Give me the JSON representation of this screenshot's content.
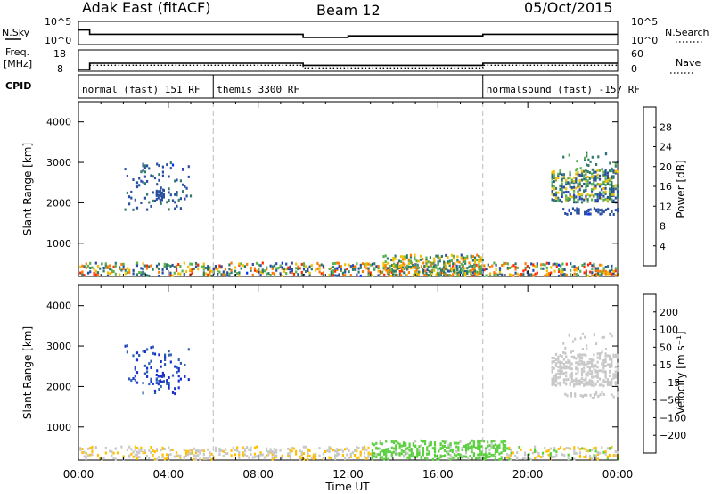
{
  "header": {
    "station": "Adak East (fitACF)",
    "beam": "Beam 12",
    "date": "05/Oct/2015"
  },
  "top_panels": {
    "nsky_label": "N.Sky",
    "nsearch_label": "N.Search",
    "freq_label_line1": "Freq.",
    "freq_label_line2": "[MHz]",
    "nave_label": "Nave",
    "cpid_label": "CPID",
    "noise_ticks_left": [
      "10^5",
      "10^0"
    ],
    "noise_ticks_right": [
      "10^5",
      "10^0"
    ],
    "freq_ticks": [
      "18",
      "8"
    ],
    "nave_ticks": [
      "60",
      "0"
    ],
    "noise_sky_steps": [
      {
        "t0": 0.0,
        "t1": 0.5,
        "v": 0.7
      },
      {
        "t0": 0.5,
        "t1": 7.5,
        "v": 0.3
      },
      {
        "t0": 7.5,
        "t1": 10.0,
        "v": 0.3
      },
      {
        "t0": 10.0,
        "t1": 12.0,
        "v": 0.0
      },
      {
        "t0": 12.0,
        "t1": 18.0,
        "v": 0.15
      },
      {
        "t0": 18.0,
        "t1": 24.0,
        "v": 0.3
      }
    ],
    "freq_steps": [
      {
        "t0": 0.0,
        "t1": 0.5,
        "v": 8
      },
      {
        "t0": 0.5,
        "t1": 10.0,
        "v": 11.5
      },
      {
        "t0": 10.0,
        "t1": 18.0,
        "v": 10.3
      },
      {
        "t0": 18.0,
        "t1": 24.0,
        "v": 11.5
      }
    ],
    "nave_steps": [
      {
        "t0": 0.5,
        "t1": 10.0,
        "v": 14
      },
      {
        "t0": 10.0,
        "t1": 18.0,
        "v": 5
      },
      {
        "t0": 18.0,
        "t1": 24.0,
        "v": 14
      }
    ],
    "cpid_segments": [
      {
        "label": "normal (fast) 151 RF",
        "start": 0,
        "end": 6
      },
      {
        "label": "themis 3300 RF",
        "start": 6,
        "end": 18
      },
      {
        "label": "normalsound (fast) -157 RF",
        "start": 18,
        "end": 24
      }
    ]
  },
  "x_axis": {
    "label": "Time UT",
    "ticks": [
      "00:00",
      "04:00",
      "08:00",
      "12:00",
      "16:00",
      "20:00",
      "00:00"
    ]
  },
  "colors": {
    "power_scale": [
      "#0a2bff",
      "#2a4fa0",
      "#2f7a6a",
      "#59b04e",
      "#f0c000",
      "#ff7a00",
      "#ff2a00"
    ],
    "velocity_scale": [
      "#1a2fd0",
      "#2c5fb0",
      "#2f8f60",
      "#5cd040",
      "#c8c8c8",
      "#ffc000",
      "#ff8000",
      "#ff4000",
      "#e00000"
    ]
  },
  "chart_data": [
    {
      "type": "heatmap",
      "ylabel": "Slant Range [km]",
      "xlabel": "",
      "y_ticks": [
        "1000",
        "2000",
        "3000",
        "4000"
      ],
      "ylim": [
        180,
        4500
      ],
      "xlim": [
        0,
        24
      ],
      "colorbar_label": "Power [dB]",
      "colorbar_ticks": [
        "4",
        "8",
        "12",
        "16",
        "20",
        "24",
        "28"
      ],
      "colorbar_range": [
        0,
        30
      ],
      "regions": [
        {
          "t0": 0.0,
          "t1": 24.0,
          "r0": 180,
          "r1": 500,
          "value_range": [
            4,
            28
          ],
          "density": 0.35
        },
        {
          "t0": 13.5,
          "t1": 18.0,
          "r0": 180,
          "r1": 700,
          "value_range": [
            8,
            24
          ],
          "density": 0.35
        },
        {
          "t0": 2.0,
          "t1": 5.0,
          "r0": 1800,
          "r1": 3000,
          "value_range": [
            4,
            10
          ],
          "density": 0.08
        },
        {
          "t0": 3.4,
          "t1": 3.8,
          "r0": 2050,
          "r1": 2300,
          "value_range": [
            4,
            8
          ],
          "density": 0.5
        },
        {
          "t0": 21.0,
          "t1": 24.0,
          "r0": 2000,
          "r1": 2800,
          "value_range": [
            4,
            20
          ],
          "density": 0.45
        },
        {
          "t0": 21.5,
          "t1": 24.0,
          "r0": 1700,
          "r1": 1850,
          "value_range": [
            4,
            8
          ],
          "density": 0.4
        },
        {
          "t0": 21.5,
          "t1": 24.0,
          "r0": 2800,
          "r1": 3300,
          "value_range": [
            8,
            16
          ],
          "density": 0.08
        }
      ]
    },
    {
      "type": "heatmap",
      "ylabel": "Slant Range [km]",
      "xlabel": "Time UT",
      "y_ticks": [
        "1000",
        "2000",
        "3000",
        "4000"
      ],
      "ylim": [
        180,
        4500
      ],
      "xlim": [
        0,
        24
      ],
      "colorbar_label": "Velocity [m s⁻¹]",
      "colorbar_ticks": [
        "200",
        "100",
        "50",
        "15",
        "−15",
        "−50",
        "−100",
        "−200"
      ],
      "colorbar_range": [
        -250,
        250
      ],
      "regions": [
        {
          "t0": 0.0,
          "t1": 13.0,
          "r0": 180,
          "r1": 500,
          "value_range": [
            -60,
            20
          ],
          "density": 0.3
        },
        {
          "t0": 13.0,
          "t1": 19.0,
          "r0": 180,
          "r1": 650,
          "value_range": [
            20,
            80
          ],
          "density": 0.45
        },
        {
          "t0": 19.0,
          "t1": 24.0,
          "r0": 180,
          "r1": 500,
          "value_range": [
            -60,
            60
          ],
          "density": 0.3
        },
        {
          "t0": 2.0,
          "t1": 5.0,
          "r0": 1800,
          "r1": 3000,
          "value_range": [
            150,
            230
          ],
          "density": 0.08
        },
        {
          "t0": 3.4,
          "t1": 3.8,
          "r0": 2050,
          "r1": 2300,
          "value_range": [
            180,
            230
          ],
          "density": 0.5
        },
        {
          "t0": 21.0,
          "t1": 24.0,
          "r0": 2000,
          "r1": 2800,
          "value_range": [
            -14,
            14
          ],
          "density": 0.45
        },
        {
          "t0": 21.5,
          "t1": 24.0,
          "r0": 1700,
          "r1": 1850,
          "value_range": [
            -14,
            14
          ],
          "density": 0.4
        },
        {
          "t0": 21.5,
          "t1": 24.0,
          "r0": 2800,
          "r1": 3300,
          "value_range": [
            -14,
            14
          ],
          "density": 0.08
        }
      ]
    }
  ]
}
